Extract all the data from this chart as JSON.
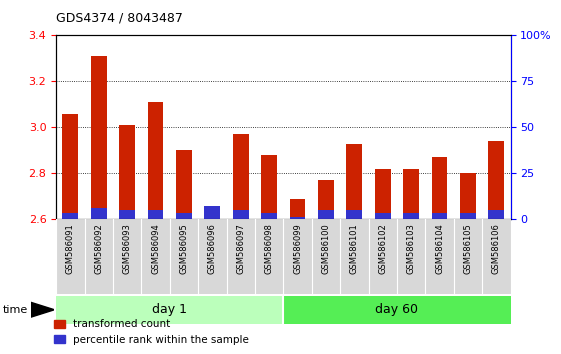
{
  "title": "GDS4374 / 8043487",
  "samples": [
    "GSM586091",
    "GSM586092",
    "GSM586093",
    "GSM586094",
    "GSM586095",
    "GSM586096",
    "GSM586097",
    "GSM586098",
    "GSM586099",
    "GSM586100",
    "GSM586101",
    "GSM586102",
    "GSM586103",
    "GSM586104",
    "GSM586105",
    "GSM586106"
  ],
  "red_values": [
    3.06,
    3.31,
    3.01,
    3.11,
    2.9,
    2.62,
    2.97,
    2.88,
    2.69,
    2.77,
    2.93,
    2.82,
    2.82,
    2.87,
    2.8,
    2.94
  ],
  "blue_values": [
    0.03,
    0.05,
    0.04,
    0.04,
    0.03,
    0.06,
    0.04,
    0.03,
    0.01,
    0.04,
    0.04,
    0.03,
    0.03,
    0.03,
    0.03,
    0.04
  ],
  "y_min": 2.6,
  "y_max": 3.4,
  "y_ticks_left": [
    2.6,
    2.8,
    3.0,
    3.2,
    3.4
  ],
  "y_ticks_right": [
    0,
    25,
    50,
    75,
    100
  ],
  "y_labels_right": [
    "0",
    "25",
    "50",
    "75",
    "100%"
  ],
  "day1_samples": 8,
  "day60_samples": 8,
  "day1_label": "day 1",
  "day60_label": "day 60",
  "time_label": "time",
  "legend_red": "transformed count",
  "legend_blue": "percentile rank within the sample",
  "bar_color_red": "#cc2200",
  "bar_color_blue": "#3333cc",
  "day1_color": "#bbffbb",
  "day60_color": "#55ee55",
  "baseline": 2.6,
  "bar_width": 0.55
}
